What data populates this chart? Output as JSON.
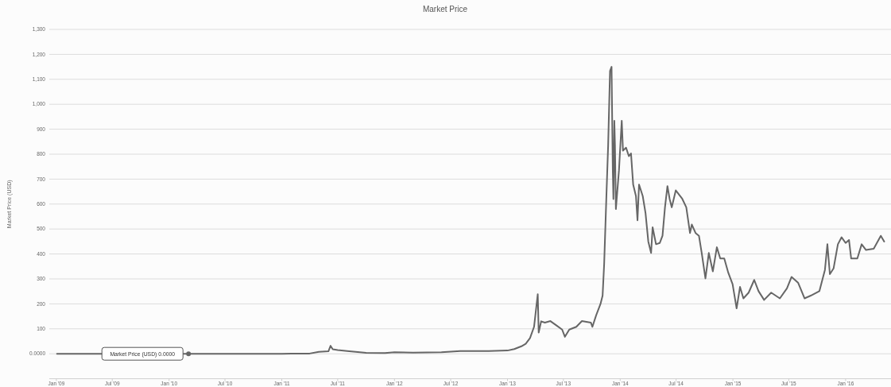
{
  "chart_data": {
    "type": "line",
    "title": "Market Price",
    "ylabel": "Market Price (USD)",
    "xlim": [
      "2008-12-09",
      "2016-05-27"
    ],
    "ylim": [
      -100,
      1300
    ],
    "xticks": [
      {
        "value": "2009-01-01",
        "label": "Jan '09"
      },
      {
        "value": "2009-07-01",
        "label": "Jul '09"
      },
      {
        "value": "2010-01-01",
        "label": "Jan '10"
      },
      {
        "value": "2010-07-01",
        "label": "Jul '10"
      },
      {
        "value": "2011-01-01",
        "label": "Jan '11"
      },
      {
        "value": "2011-07-01",
        "label": "Jul '11"
      },
      {
        "value": "2012-01-01",
        "label": "Jan '12"
      },
      {
        "value": "2012-07-01",
        "label": "Jul '12"
      },
      {
        "value": "2013-01-01",
        "label": "Jan '13"
      },
      {
        "value": "2013-07-01",
        "label": "Jul '13"
      },
      {
        "value": "2014-01-01",
        "label": "Jan '14"
      },
      {
        "value": "2014-07-01",
        "label": "Jul '14"
      },
      {
        "value": "2015-01-01",
        "label": "Jan '15"
      },
      {
        "value": "2015-07-01",
        "label": "Jul '15"
      },
      {
        "value": "2016-01-01",
        "label": "Jan '16"
      }
    ],
    "yticks": [
      {
        "value": 0,
        "label": "0.0000"
      },
      100,
      200,
      300,
      400,
      500,
      600,
      700,
      800,
      900,
      {
        "value": 1000,
        "label": "1,000"
      },
      {
        "value": 1100,
        "label": "1,100"
      },
      {
        "value": 1200,
        "label": "1,200"
      },
      {
        "value": 1300,
        "label": "1,300"
      }
    ],
    "grid": "y",
    "line_style": "solid",
    "marker": "none",
    "annotations": [
      {
        "text": "Market Price (USD) 0.0000",
        "x": "2010-03-05",
        "y": 0
      }
    ],
    "series": [
      {
        "color": "#666666",
        "x": [
          "2009-01-03",
          "2010-07-01",
          "2011-01-01",
          "2011-02-01",
          "2011-04-01",
          "2011-05-01",
          "2011-06-01",
          "2011-06-08",
          "2011-06-15",
          "2011-07-01",
          "2011-08-01",
          "2011-10-01",
          "2011-12-01",
          "2012-01-01",
          "2012-03-01",
          "2012-06-01",
          "2012-08-01",
          "2012-09-01",
          "2012-11-01",
          "2013-01-01",
          "2013-01-23",
          "2013-02-15",
          "2013-03-01",
          "2013-03-15",
          "2013-03-28",
          "2013-04-09",
          "2013-04-12",
          "2013-04-20",
          "2013-05-02",
          "2013-05-20",
          "2013-06-08",
          "2013-06-27",
          "2013-07-06",
          "2013-07-20",
          "2013-08-12",
          "2013-08-30",
          "2013-09-28",
          "2013-10-03",
          "2013-10-15",
          "2013-10-29",
          "2013-11-05",
          "2013-11-10",
          "2013-11-17",
          "2013-11-23",
          "2013-11-29",
          "2013-12-04",
          "2013-12-08",
          "2013-12-10",
          "2013-12-13",
          "2013-12-15",
          "2013-12-18",
          "2013-12-28",
          "2014-01-06",
          "2014-01-10",
          "2014-01-20",
          "2014-01-29",
          "2014-02-05",
          "2014-02-12",
          "2014-02-21",
          "2014-02-26",
          "2014-03-03",
          "2014-03-15",
          "2014-03-24",
          "2014-04-02",
          "2014-04-11",
          "2014-04-16",
          "2014-04-27",
          "2014-05-09",
          "2014-05-18",
          "2014-05-26",
          "2014-06-03",
          "2014-06-10",
          "2014-06-17",
          "2014-06-30",
          "2014-07-21",
          "2014-08-03",
          "2014-08-15",
          "2014-08-21",
          "2014-09-02",
          "2014-09-13",
          "2014-09-22",
          "2014-10-04",
          "2014-10-15",
          "2014-10-28",
          "2014-11-10",
          "2014-11-21",
          "2014-12-04",
          "2014-12-17",
          "2014-12-31",
          "2015-01-13",
          "2015-01-24",
          "2015-02-04",
          "2015-02-21",
          "2015-03-11",
          "2015-03-25",
          "2015-04-12",
          "2015-05-05",
          "2015-06-02",
          "2015-06-25",
          "2015-07-10",
          "2015-07-31",
          "2015-08-21",
          "2015-09-10",
          "2015-10-08",
          "2015-10-26",
          "2015-11-03",
          "2015-11-11",
          "2015-11-23",
          "2015-12-07",
          "2015-12-19",
          "2016-01-01",
          "2016-01-12",
          "2016-01-19",
          "2016-02-08",
          "2016-02-22",
          "2016-03-07",
          "2016-04-01",
          "2016-04-24",
          "2016-05-05"
        ],
        "values": [
          0,
          0,
          0,
          1,
          1,
          8,
          10,
          32,
          18,
          15,
          11,
          4,
          3,
          6,
          5,
          6,
          11,
          11,
          11,
          13,
          19,
          30,
          40,
          63,
          108,
          239,
          85,
          130,
          125,
          131,
          114,
          97,
          68,
          97,
          108,
          131,
          125,
          108,
          154,
          199,
          233,
          359,
          621,
          837,
          1133,
          1150,
          735,
          620,
          934,
          837,
          580,
          735,
          934,
          814,
          826,
          792,
          803,
          678,
          632,
          535,
          678,
          632,
          564,
          450,
          404,
          507,
          439,
          444,
          473,
          587,
          672,
          621,
          587,
          655,
          621,
          587,
          484,
          518,
          484,
          473,
          404,
          302,
          404,
          330,
          427,
          382,
          382,
          325,
          279,
          182,
          268,
          222,
          245,
          296,
          251,
          216,
          245,
          222,
          262,
          308,
          285,
          222,
          233,
          251,
          336,
          439,
          319,
          342,
          439,
          467,
          444,
          456,
          382,
          382,
          439,
          416,
          421,
          473,
          450
        ]
      }
    ]
  }
}
